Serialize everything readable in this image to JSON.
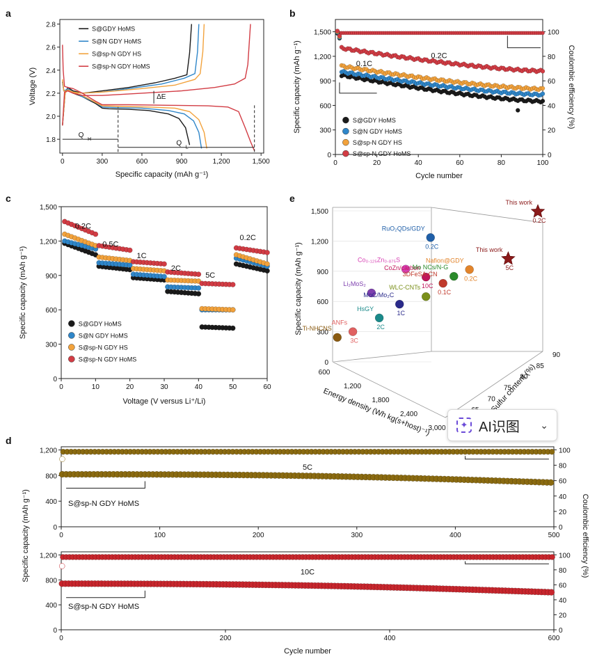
{
  "colors": {
    "s_gdy": "#1a1a1a",
    "s_n_gdy": "#2f86c9",
    "s_spn_hs": "#f2a23c",
    "s_spn_homs": "#d23c44",
    "gold": "#8a6a10",
    "red": "#c8262d",
    "dark_red": "#8b1a1a"
  },
  "widget": {
    "label": "AI识图",
    "icon": "sparkle-icon",
    "chevron": "⌄"
  },
  "chart_data": [
    {
      "id": "a",
      "type": "line",
      "panel_label": "a",
      "xlabel": "Specific capacity (mAh g⁻¹)",
      "ylabel": "Voltage (V)",
      "xlim": [
        -20,
        1520
      ],
      "ylim": [
        1.68,
        2.84
      ],
      "xticks": [
        0,
        300,
        600,
        900,
        1200,
        1500
      ],
      "xtick_labels": [
        "0",
        "300",
        "600",
        "900",
        "1,200",
        "1,500"
      ],
      "yticks": [
        1.8,
        2.0,
        2.2,
        2.4,
        2.6,
        2.8
      ],
      "ytick_labels": [
        "1.8",
        "2.0",
        "2.2",
        "2.4",
        "2.6",
        "2.8"
      ],
      "annotations": [
        "ΔE",
        "Q",
        "Q",
        "H",
        "L"
      ],
      "series": [
        {
          "name": "S@GDY HoMS",
          "color_key": "s_gdy",
          "discharge": [
            [
              0,
              2.3
            ],
            [
              10,
              2.22
            ],
            [
              30,
              2.23
            ],
            [
              80,
              2.2
            ],
            [
              150,
              2.17
            ],
            [
              250,
              2.11
            ],
            [
              300,
              2.07
            ],
            [
              350,
              2.065
            ],
            [
              500,
              2.06
            ],
            [
              650,
              2.05
            ],
            [
              800,
              2.02
            ],
            [
              880,
              1.98
            ],
            [
              930,
              1.9
            ],
            [
              960,
              1.75
            ]
          ],
          "charge": [
            [
              0,
              1.92
            ],
            [
              20,
              2.2
            ],
            [
              40,
              2.25
            ],
            [
              80,
              2.22
            ],
            [
              150,
              2.2
            ],
            [
              300,
              2.22
            ],
            [
              500,
              2.25
            ],
            [
              700,
              2.29
            ],
            [
              850,
              2.33
            ],
            [
              940,
              2.36
            ],
            [
              960,
              2.55
            ],
            [
              975,
              2.8
            ]
          ]
        },
        {
          "name": "S@N GDY HoMS",
          "color_key": "s_n_gdy",
          "discharge": [
            [
              0,
              2.3
            ],
            [
              10,
              2.22
            ],
            [
              30,
              2.23
            ],
            [
              80,
              2.21
            ],
            [
              150,
              2.17
            ],
            [
              250,
              2.12
            ],
            [
              300,
              2.08
            ],
            [
              400,
              2.075
            ],
            [
              600,
              2.07
            ],
            [
              800,
              2.05
            ],
            [
              920,
              2.02
            ],
            [
              990,
              1.96
            ],
            [
              1030,
              1.86
            ],
            [
              1050,
              1.72
            ]
          ],
          "charge": [
            [
              0,
              1.92
            ],
            [
              20,
              2.2
            ],
            [
              40,
              2.24
            ],
            [
              80,
              2.21
            ],
            [
              150,
              2.2
            ],
            [
              300,
              2.21
            ],
            [
              500,
              2.24
            ],
            [
              750,
              2.28
            ],
            [
              920,
              2.33
            ],
            [
              1000,
              2.37
            ],
            [
              1020,
              2.56
            ],
            [
              1030,
              2.8
            ]
          ]
        },
        {
          "name": "S@sp-N GDY HS",
          "color_key": "s_spn_hs",
          "discharge": [
            [
              0,
              2.32
            ],
            [
              10,
              2.22
            ],
            [
              30,
              2.22
            ],
            [
              80,
              2.21
            ],
            [
              150,
              2.18
            ],
            [
              250,
              2.12
            ],
            [
              300,
              2.09
            ],
            [
              450,
              2.085
            ],
            [
              650,
              2.08
            ],
            [
              850,
              2.07
            ],
            [
              960,
              2.04
            ],
            [
              1030,
              1.97
            ],
            [
              1070,
              1.86
            ],
            [
              1090,
              1.72
            ]
          ],
          "charge": [
            [
              0,
              1.92
            ],
            [
              20,
              2.2
            ],
            [
              40,
              2.23
            ],
            [
              80,
              2.21
            ],
            [
              150,
              2.2
            ],
            [
              300,
              2.21
            ],
            [
              600,
              2.24
            ],
            [
              850,
              2.27
            ],
            [
              1000,
              2.32
            ],
            [
              1040,
              2.37
            ],
            [
              1060,
              2.56
            ],
            [
              1070,
              2.8
            ]
          ]
        },
        {
          "name": "S@sp-N GDY HoMS",
          "color_key": "s_spn_homs",
          "discharge": [
            [
              0,
              2.62
            ],
            [
              5,
              2.4
            ],
            [
              15,
              2.26
            ],
            [
              40,
              2.25
            ],
            [
              80,
              2.24
            ],
            [
              150,
              2.2
            ],
            [
              250,
              2.13
            ],
            [
              300,
              2.1
            ],
            [
              500,
              2.1
            ],
            [
              800,
              2.095
            ],
            [
              1100,
              2.09
            ],
            [
              1250,
              2.08
            ],
            [
              1330,
              2.04
            ],
            [
              1380,
              1.9
            ],
            [
              1420,
              1.78
            ],
            [
              1450,
              1.7
            ]
          ],
          "charge": [
            [
              0,
              1.92
            ],
            [
              15,
              2.21
            ],
            [
              40,
              2.22
            ],
            [
              80,
              2.2
            ],
            [
              150,
              2.18
            ],
            [
              300,
              2.18
            ],
            [
              600,
              2.2
            ],
            [
              900,
              2.22
            ],
            [
              1150,
              2.25
            ],
            [
              1300,
              2.28
            ],
            [
              1380,
              2.33
            ],
            [
              1400,
              2.45
            ],
            [
              1420,
              2.8
            ]
          ]
        }
      ]
    },
    {
      "id": "b",
      "type": "scatter",
      "panel_label": "b",
      "xlabel": "Cycle number",
      "ylabel": "Specific capacity (mAh g⁻¹)",
      "y2label": "Coulombic efficiency (%)",
      "xlim": [
        0,
        100
      ],
      "ylim": [
        0,
        1650
      ],
      "y2lim": [
        0,
        110
      ],
      "xticks": [
        0,
        20,
        40,
        60,
        80,
        100
      ],
      "xtick_labels": [
        "0",
        "20",
        "40",
        "60",
        "80",
        "100"
      ],
      "yticks": [
        0,
        300,
        600,
        900,
        1200,
        1500
      ],
      "ytick_labels": [
        "0",
        "300",
        "600",
        "900",
        "1,200",
        "1,500"
      ],
      "y2ticks": [
        0,
        20,
        40,
        60,
        80,
        100
      ],
      "y2tick_labels": [
        "0",
        "20",
        "40",
        "60",
        "80",
        "100"
      ],
      "rate_labels": [
        "0.1C",
        "0.2C"
      ],
      "ce_value": 99,
      "series": [
        {
          "name": "S@GDY HoMS",
          "color_key": "s_gdy",
          "start_01c": 1480,
          "start": 970,
          "end": 650,
          "outliers": [
            [
              88,
              540
            ]
          ]
        },
        {
          "name": "S@N GDY HoMS",
          "color_key": "s_n_gdy",
          "start_01c": 1490,
          "start": 1010,
          "end": 730
        },
        {
          "name": "S@sp-N GDY HS",
          "color_key": "s_spn_hs",
          "start_01c": 1500,
          "start": 1080,
          "end": 800
        },
        {
          "name": "S@sp-N GDY HoMS",
          "color_key": "s_spn_homs",
          "start_01c": 1510,
          "start": 1300,
          "end": 1020
        }
      ]
    },
    {
      "id": "c",
      "type": "scatter",
      "panel_label": "c",
      "xlabel": "Voltage (V versus Li⁺/Li)",
      "ylabel": "Specific capacity (mAh g⁻¹)",
      "xlim": [
        0,
        60
      ],
      "ylim": [
        0,
        1500
      ],
      "xticks": [
        0,
        10,
        20,
        30,
        40,
        50,
        60
      ],
      "xtick_labels": [
        "0",
        "10",
        "20",
        "30",
        "40",
        "50",
        "60"
      ],
      "yticks": [
        0,
        300,
        600,
        900,
        1200,
        1500
      ],
      "ytick_labels": [
        "0",
        "300",
        "600",
        "900",
        "1,200",
        "1,500"
      ],
      "rate_labels": [
        "0.2C",
        "0.5C",
        "1C",
        "2C",
        "5C",
        "0.2C"
      ],
      "segments": [
        1,
        11,
        21,
        31,
        41,
        51,
        61
      ],
      "series": [
        {
          "name": "S@GDY HoMS",
          "color_key": "s_gdy",
          "levels": [
            [
              1180,
              1080
            ],
            [
              980,
              950
            ],
            [
              880,
              860
            ],
            [
              760,
              740
            ],
            [
              450,
              440
            ],
            [
              1000,
              940
            ]
          ]
        },
        {
          "name": "S@N GDY HoMS",
          "color_key": "s_n_gdy",
          "levels": [
            [
              1200,
              1130
            ],
            [
              1010,
              990
            ],
            [
              910,
              890
            ],
            [
              800,
              790
            ],
            [
              600,
              600
            ],
            [
              1050,
              980
            ]
          ]
        },
        {
          "name": "S@sp-N GDY HS",
          "color_key": "s_spn_hs",
          "levels": [
            [
              1260,
              1160
            ],
            [
              1060,
              1030
            ],
            [
              960,
              940
            ],
            [
              860,
              850
            ],
            [
              610,
              600
            ],
            [
              1080,
              1000
            ]
          ]
        },
        {
          "name": "S@sp-N GDY HoMS",
          "color_key": "s_spn_homs",
          "levels": [
            [
              1370,
              1260
            ],
            [
              1160,
              1120
            ],
            [
              1020,
              1000
            ],
            [
              930,
              910
            ],
            [
              830,
              820
            ],
            [
              1140,
              1100
            ]
          ]
        }
      ]
    },
    {
      "id": "e",
      "type": "scatter",
      "panel_label": "e",
      "view": "3d",
      "xlabel": "Energy density (Wh kg(s+host)⁻¹)",
      "ylabel": "Specific capacity (mAh g⁻¹)",
      "zlabel": "Sulfur content (%)",
      "ylim": [
        0,
        1500
      ],
      "yticks": [
        0,
        300,
        600,
        900,
        1200,
        1500
      ],
      "ytick_labels": [
        "0",
        "300",
        "600",
        "900",
        "1,200",
        "1,500"
      ],
      "xtick_labels": [
        "600",
        "1,200",
        "1,800",
        "2,400",
        "3,000"
      ],
      "ztick_labels": [
        "60",
        "65",
        "70",
        "75",
        "80",
        "85",
        "90"
      ],
      "points": [
        {
          "label": "This work",
          "sub": "0.2C",
          "energy": 3000,
          "capacity": 1390,
          "sulfur": 90,
          "star": true,
          "color": "#8b1a1a"
        },
        {
          "label": "This work",
          "sub": "5C",
          "energy": 2500,
          "capacity": 860,
          "sulfur": 88,
          "star": true,
          "color": "#8b1a1a"
        },
        {
          "label": "RuO₂QDs/GDY",
          "sub": "0.2C",
          "energy": 1700,
          "capacity": 1150,
          "sulfur": 75,
          "color": "#1f5fa8"
        },
        {
          "label": "Co₀.₁₂₅Zn₀.₈₇₅S",
          "energy": 1500,
          "capacity": 900,
          "sulfur": 70,
          "color": "#d63fb3"
        },
        {
          "label": "CoZn/carbon",
          "sub": "10C",
          "energy": 1800,
          "capacity": 850,
          "sulfur": 72,
          "color": "#c0155a"
        },
        {
          "label": "Nafion@GDY",
          "sub": "0.2C",
          "energy": 2200,
          "capacity": 850,
          "sulfur": 80,
          "color": "#e2842b"
        },
        {
          "label": "Mo NCs/N-G",
          "energy": 2000,
          "capacity": 780,
          "sulfur": 78,
          "color": "#2a8a2a"
        },
        {
          "label": "3DFeSA-CN",
          "sub": "0.1C",
          "energy": 1900,
          "capacity": 730,
          "sulfur": 76,
          "color": "#c0392b"
        },
        {
          "label": "WLC-CNTs",
          "energy": 1800,
          "capacity": 660,
          "sulfur": 72,
          "color": "#7a8f1a"
        },
        {
          "label": "Li₂MoS₂",
          "energy": 1100,
          "capacity": 680,
          "sulfur": 65,
          "color": "#7e3fae"
        },
        {
          "label": "MoC/Mo₂C",
          "sub": "1C",
          "energy": 1500,
          "capacity": 600,
          "sulfur": 68,
          "color": "#2a2a8a"
        },
        {
          "label": "HsGY",
          "sub": "2C",
          "energy": 1200,
          "capacity": 440,
          "sulfur": 66,
          "color": "#1a8a8a"
        },
        {
          "label": "ANFs",
          "sub": "3C",
          "energy": 900,
          "capacity": 320,
          "sulfur": 62,
          "color": "#e06060"
        },
        {
          "label": "Ti-NHCNS",
          "energy": 700,
          "capacity": 260,
          "sulfur": 60,
          "color": "#8a5a10"
        }
      ]
    },
    {
      "id": "d1",
      "type": "scatter",
      "panel_label": "d",
      "xlabel": "",
      "ylabel": "Specific capacity (mAh g⁻¹)",
      "y2label": "Coulombic efficiency (%)",
      "xlim": [
        0,
        500
      ],
      "ylim": [
        0,
        1250
      ],
      "y2lim": [
        0,
        104
      ],
      "xticks": [
        0,
        100,
        200,
        300,
        400,
        500
      ],
      "xtick_labels": [
        "0",
        "100",
        "200",
        "300",
        "400",
        "500"
      ],
      "yticks": [
        0,
        400,
        800,
        1200
      ],
      "ytick_labels": [
        "0",
        "400",
        "800",
        "1,200"
      ],
      "y2ticks": [
        0,
        20,
        40,
        60,
        80,
        100
      ],
      "y2tick_labels": [
        "0",
        "20",
        "40",
        "60",
        "80",
        "100"
      ],
      "rate": "5C",
      "sample": "S@sp-N GDY HoMS",
      "color_key": "gold",
      "capacity_start": 820,
      "capacity_end": 690,
      "ce_value": 97.5,
      "ce_first": 88
    },
    {
      "id": "d2",
      "type": "scatter",
      "panel_label": "",
      "xlabel": "Cycle number",
      "ylabel": "",
      "y2label": "",
      "xlim": [
        0,
        600
      ],
      "ylim": [
        0,
        1250
      ],
      "y2lim": [
        0,
        104
      ],
      "xticks": [
        0,
        200,
        400,
        600
      ],
      "xtick_labels": [
        "0",
        "200",
        "400",
        "600"
      ],
      "yticks": [
        0,
        400,
        800,
        1200
      ],
      "ytick_labels": [
        "0",
        "400",
        "800",
        "1,200"
      ],
      "y2ticks": [
        0,
        20,
        40,
        60,
        80,
        100
      ],
      "y2tick_labels": [
        "0",
        "20",
        "40",
        "60",
        "80",
        "100"
      ],
      "rate": "10C",
      "sample": "S@sp-N GDY HoMS",
      "color_key": "red",
      "capacity_start": 740,
      "capacity_end": 600,
      "ce_value": 97,
      "ce_first": 85
    }
  ]
}
